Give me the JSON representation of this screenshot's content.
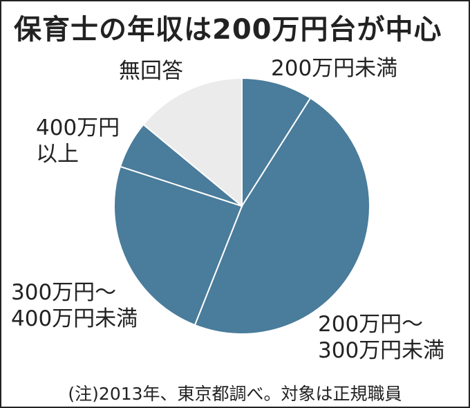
{
  "title": "保育士の年収は200万円台が中心",
  "note": "(注)2013年、東京都調べ。対象は正規職員",
  "colors": {
    "slice": "#4a7c9b",
    "no_answer": "#ebebeb",
    "divider": "#ffffff"
  },
  "chart_data": {
    "type": "pie",
    "title": "保育士の年収は200万円台が中心",
    "start": "12 o'clock",
    "direction": "clockwise",
    "slices": [
      {
        "label": [
          "200万円未満"
        ],
        "value": 9
      },
      {
        "label": [
          "200万円～",
          "300万円未満"
        ],
        "value": 47
      },
      {
        "label": [
          "300万円～",
          "400万円未満"
        ],
        "value": 24
      },
      {
        "label": [
          "400万円",
          "以上"
        ],
        "value": 6
      },
      {
        "label": [
          "無回答"
        ],
        "value": 14
      }
    ]
  }
}
